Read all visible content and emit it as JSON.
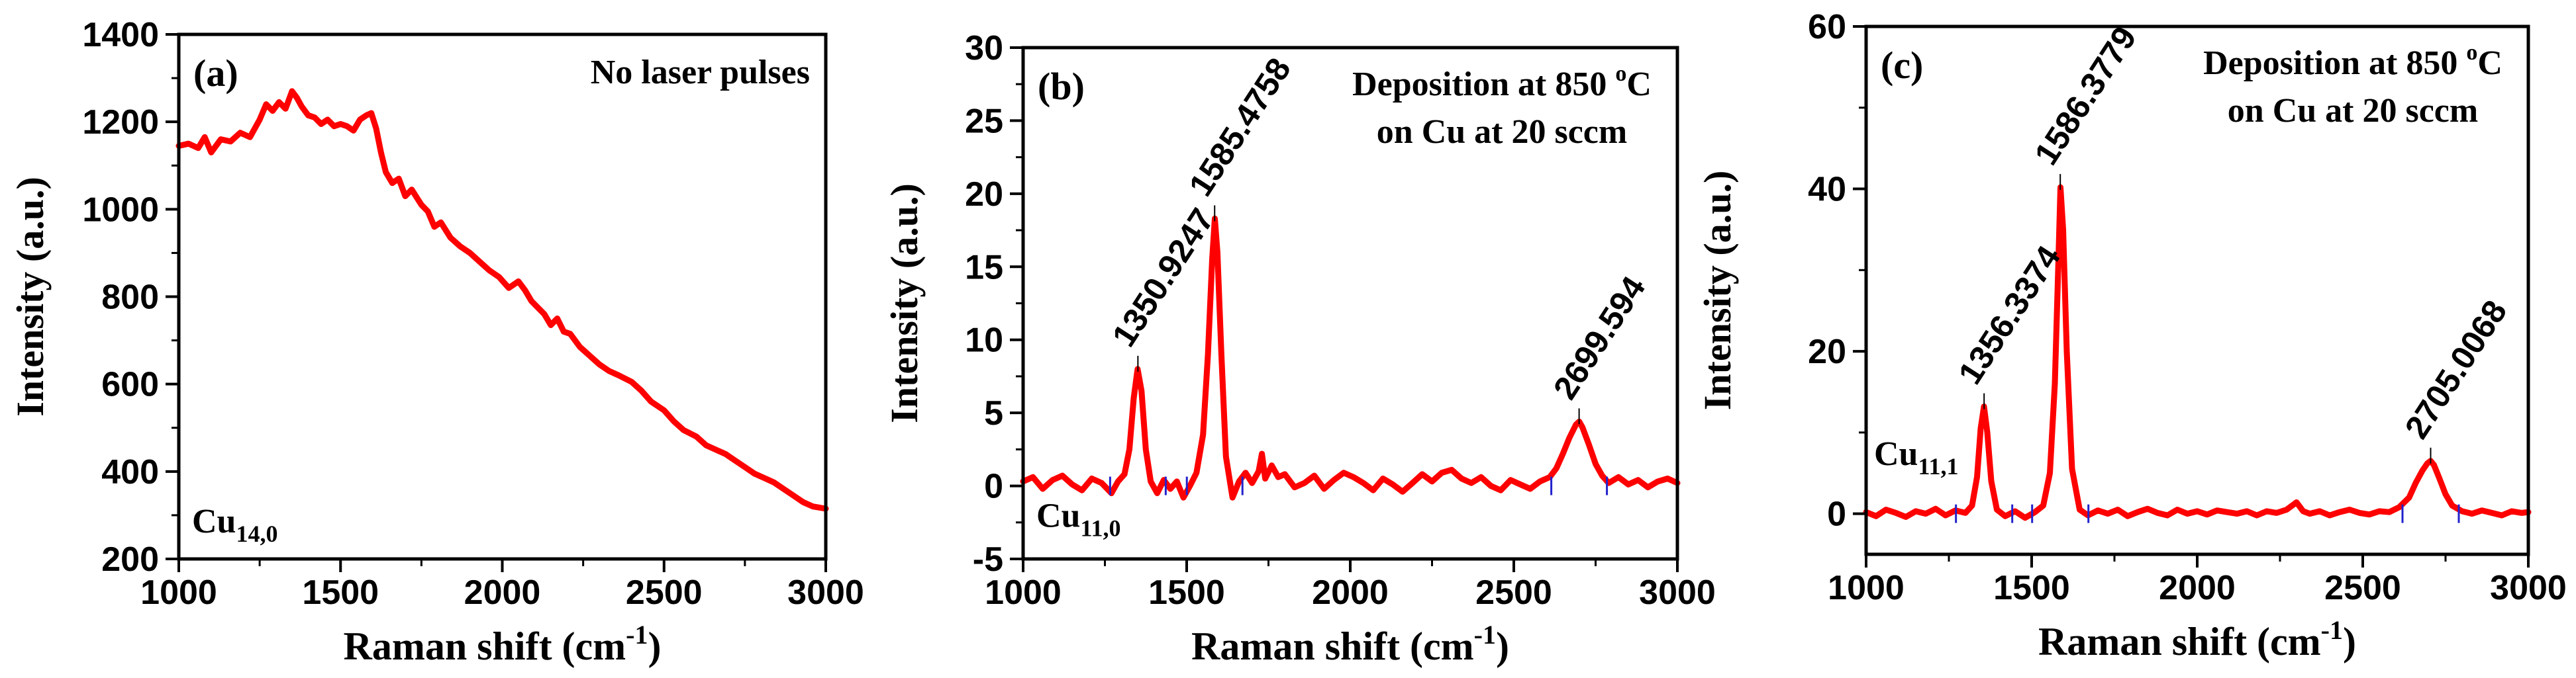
{
  "figure": {
    "description_style": "three-panel Raman spectra"
  },
  "chart_data": [
    {
      "type": "line",
      "panel_label": "(a)",
      "annotation": "No laser pulses",
      "sample_label": {
        "base": "Cu",
        "sub": "14,0"
      },
      "xlabel": {
        "text": "Raman shift (cm",
        "sup": "-1",
        "tail": ")"
      },
      "ylabel": "Intensity (a.u.)",
      "xlim": [
        1000,
        3000
      ],
      "ylim": [
        200,
        1400
      ],
      "xticks": [
        1000,
        1500,
        2000,
        2500,
        3000
      ],
      "yticks": [
        200,
        400,
        600,
        800,
        1000,
        1200,
        1400
      ],
      "series": [
        {
          "name": "Cu14,0",
          "color": "#ff0000",
          "x": [
            1000,
            1030,
            1060,
            1080,
            1100,
            1130,
            1160,
            1190,
            1220,
            1250,
            1270,
            1290,
            1310,
            1330,
            1350,
            1365,
            1380,
            1400,
            1420,
            1440,
            1460,
            1480,
            1500,
            1520,
            1540,
            1560,
            1580,
            1595,
            1610,
            1625,
            1640,
            1660,
            1680,
            1700,
            1720,
            1750,
            1770,
            1790,
            1810,
            1840,
            1870,
            1900,
            1930,
            1960,
            1990,
            2020,
            2050,
            2070,
            2090,
            2110,
            2130,
            2150,
            2170,
            2190,
            2210,
            2240,
            2270,
            2300,
            2330,
            2360,
            2400,
            2430,
            2460,
            2500,
            2530,
            2560,
            2600,
            2630,
            2660,
            2690,
            2720,
            2750,
            2780,
            2810,
            2840,
            2870,
            2900,
            2930,
            2960,
            3000
          ],
          "y": [
            1145,
            1150,
            1140,
            1165,
            1130,
            1160,
            1155,
            1175,
            1165,
            1205,
            1240,
            1225,
            1245,
            1230,
            1270,
            1255,
            1235,
            1215,
            1210,
            1195,
            1205,
            1190,
            1195,
            1190,
            1180,
            1205,
            1215,
            1220,
            1185,
            1130,
            1085,
            1060,
            1070,
            1030,
            1045,
            1010,
            995,
            960,
            970,
            935,
            915,
            900,
            880,
            860,
            845,
            820,
            835,
            815,
            790,
            775,
            760,
            735,
            750,
            720,
            715,
            685,
            665,
            645,
            630,
            620,
            605,
            585,
            560,
            540,
            515,
            495,
            480,
            460,
            450,
            440,
            425,
            410,
            395,
            385,
            375,
            360,
            345,
            330,
            320,
            315
          ]
        }
      ]
    },
    {
      "type": "line",
      "panel_label": "(b)",
      "annotation": [
        "Deposition at 850 ",
        "o",
        "C",
        "on Cu at 20 sccm"
      ],
      "sample_label": {
        "base": "Cu",
        "sub": "11,0"
      },
      "xlabel": {
        "text": "Raman shift (cm",
        "sup": "-1",
        "tail": ")"
      },
      "ylabel": "Intensity (a.u.)",
      "xlim": [
        1000,
        3000
      ],
      "ylim": [
        -5,
        30
      ],
      "xticks": [
        1000,
        1500,
        2000,
        2500,
        3000
      ],
      "yticks": [
        -5,
        0,
        5,
        10,
        15,
        20,
        25,
        30
      ],
      "peaks": [
        {
          "x": 1350.9247,
          "y": 8.0,
          "label": "1350.9247"
        },
        {
          "x": 1585.4758,
          "y": 18.3,
          "label": "1585.4758"
        },
        {
          "x": 2699.594,
          "y": 4.4,
          "label": "2699.594"
        }
      ],
      "series": [
        {
          "name": "Cu11,0",
          "color": "#ff0000",
          "x": [
            1000,
            1030,
            1060,
            1090,
            1120,
            1150,
            1180,
            1210,
            1240,
            1270,
            1290,
            1310,
            1325,
            1338,
            1350,
            1362,
            1375,
            1390,
            1410,
            1430,
            1450,
            1470,
            1490,
            1510,
            1530,
            1550,
            1565,
            1578,
            1586,
            1594,
            1606,
            1620,
            1640,
            1660,
            1680,
            1700,
            1720,
            1730,
            1740,
            1760,
            1780,
            1800,
            1830,
            1860,
            1890,
            1920,
            1950,
            1980,
            2010,
            2040,
            2070,
            2100,
            2130,
            2160,
            2190,
            2220,
            2250,
            2280,
            2310,
            2340,
            2370,
            2400,
            2430,
            2460,
            2490,
            2520,
            2550,
            2580,
            2610,
            2630,
            2650,
            2670,
            2690,
            2700,
            2710,
            2730,
            2750,
            2770,
            2790,
            2820,
            2850,
            2880,
            2910,
            2940,
            2970,
            3000
          ],
          "y": [
            0.3,
            0.6,
            -0.2,
            0.4,
            0.7,
            0.1,
            -0.3,
            0.5,
            0.2,
            -0.5,
            0.3,
            0.8,
            2.5,
            6.0,
            8.0,
            6.5,
            2.5,
            0.3,
            -0.5,
            0.4,
            -0.2,
            0.3,
            -0.8,
            0.0,
            0.9,
            3.5,
            9.0,
            15.5,
            18.3,
            16.0,
            9.0,
            2.0,
            -0.8,
            0.3,
            0.9,
            0.2,
            1.0,
            2.2,
            0.5,
            1.4,
            0.6,
            0.8,
            -0.1,
            0.2,
            0.7,
            -0.2,
            0.4,
            0.9,
            0.6,
            0.2,
            -0.3,
            0.5,
            0.1,
            -0.4,
            0.2,
            0.8,
            0.3,
            0.9,
            1.1,
            0.5,
            0.2,
            0.6,
            0.0,
            -0.3,
            0.4,
            0.1,
            -0.2,
            0.3,
            0.6,
            1.2,
            2.2,
            3.3,
            4.2,
            4.4,
            4.0,
            2.8,
            1.5,
            0.7,
            0.2,
            0.6,
            0.1,
            0.4,
            -0.1,
            0.3,
            0.5,
            0.2
          ]
        }
      ]
    },
    {
      "type": "line",
      "panel_label": "(c)",
      "annotation": [
        "Deposition at 850 ",
        "o",
        "C",
        "on Cu at 20 sccm"
      ],
      "sample_label": {
        "base": "Cu",
        "sub": "11,1"
      },
      "xlabel": {
        "text": "Raman shift (cm",
        "sup": "-1",
        "tail": ")"
      },
      "ylabel": "Intensity (a.u.)",
      "xlim": [
        1000,
        3000
      ],
      "ylim": [
        -5,
        60
      ],
      "xticks": [
        1000,
        1500,
        2000,
        2500,
        3000
      ],
      "yticks": [
        0,
        20,
        40,
        60
      ],
      "peaks": [
        {
          "x": 1356.3374,
          "y": 13.2,
          "label": "1356.3374"
        },
        {
          "x": 1586.3779,
          "y": 40.2,
          "label": "1586.3779"
        },
        {
          "x": 2705.0068,
          "y": 6.5,
          "label": "2705.0068"
        }
      ],
      "series": [
        {
          "name": "Cu11,1",
          "color": "#ff0000",
          "x": [
            1000,
            1030,
            1060,
            1090,
            1120,
            1150,
            1180,
            1210,
            1240,
            1270,
            1300,
            1320,
            1335,
            1346,
            1356,
            1366,
            1378,
            1395,
            1420,
            1450,
            1480,
            1510,
            1535,
            1555,
            1570,
            1580,
            1587,
            1595,
            1606,
            1622,
            1645,
            1670,
            1700,
            1730,
            1760,
            1790,
            1820,
            1850,
            1880,
            1910,
            1940,
            1970,
            2000,
            2030,
            2060,
            2090,
            2120,
            2150,
            2180,
            2210,
            2240,
            2270,
            2300,
            2320,
            2340,
            2370,
            2400,
            2430,
            2460,
            2490,
            2520,
            2550,
            2580,
            2610,
            2640,
            2660,
            2680,
            2695,
            2705,
            2715,
            2730,
            2750,
            2770,
            2800,
            2830,
            2860,
            2890,
            2920,
            2950,
            2980,
            3000
          ],
          "y": [
            0.2,
            -0.3,
            0.5,
            0.1,
            -0.4,
            0.3,
            0.0,
            0.6,
            -0.2,
            0.4,
            0.1,
            1.0,
            4.5,
            10.5,
            13.2,
            10.0,
            4.0,
            0.5,
            -0.3,
            0.3,
            -0.5,
            0.2,
            1.0,
            5.0,
            16.0,
            30.0,
            40.2,
            35.0,
            20.0,
            5.5,
            0.5,
            -0.2,
            0.4,
            0.0,
            0.5,
            -0.3,
            0.2,
            0.6,
            0.1,
            -0.2,
            0.5,
            0.0,
            0.3,
            -0.1,
            0.4,
            0.2,
            0.0,
            0.3,
            -0.2,
            0.3,
            0.1,
            0.5,
            1.4,
            0.3,
            0.0,
            0.3,
            -0.2,
            0.2,
            0.5,
            0.1,
            -0.1,
            0.3,
            0.2,
            0.8,
            2.0,
            3.8,
            5.3,
            6.2,
            6.5,
            6.0,
            4.5,
            2.4,
            1.0,
            0.3,
            0.0,
            0.4,
            0.1,
            -0.2,
            0.3,
            0.1,
            0.2
          ]
        }
      ]
    }
  ]
}
